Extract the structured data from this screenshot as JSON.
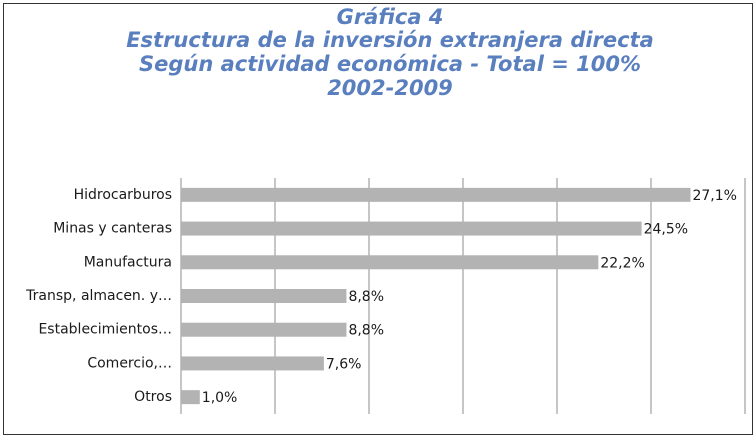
{
  "chart_data": {
    "type": "bar",
    "orientation": "horizontal",
    "title": [
      "Gráfica 4",
      "Estructura de la inversión extranjera directa",
      "Según actividad económica - Total = 100%",
      "2002-2009"
    ],
    "categories": [
      "Hidrocarburos",
      "Minas y canteras",
      "Manufactura",
      "Transp, almacen. y…",
      "Establecimientos…",
      "Comercio,…",
      "Otros"
    ],
    "values": [
      27.1,
      24.5,
      22.2,
      8.8,
      8.8,
      7.6,
      1.0
    ],
    "value_labels": [
      "27,1%",
      "24,5%",
      "22,2%",
      "8,8%",
      "8,8%",
      "7,6%",
      "1,0%"
    ],
    "color": "#b3b3b3",
    "xlim": [
      0,
      30
    ],
    "xticks": [
      0,
      5,
      10,
      15,
      20,
      25,
      30
    ],
    "grid": true
  }
}
